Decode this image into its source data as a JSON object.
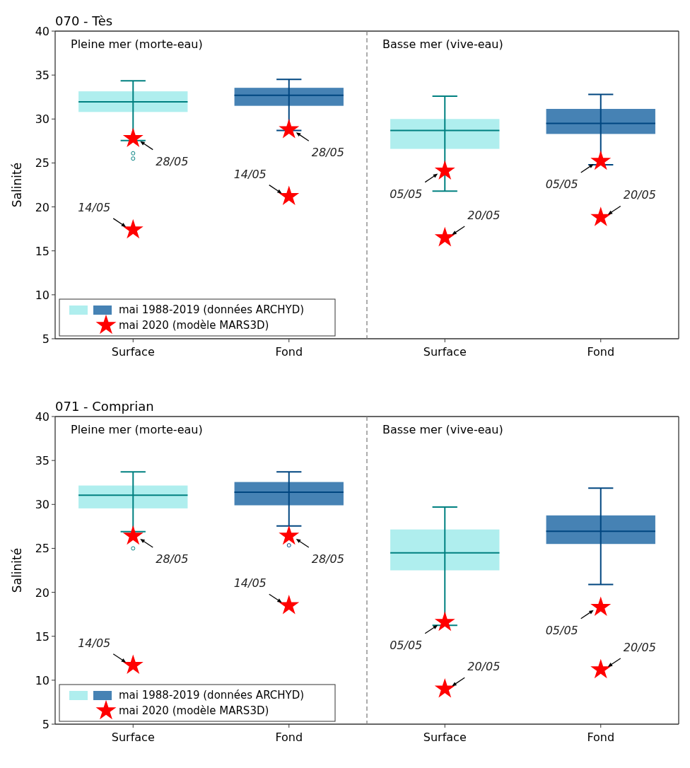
{
  "chart_data": [
    {
      "type": "box",
      "title": "070 - Tès",
      "ylabel": "Salinité",
      "categories": [
        "Surface",
        "Fond"
      ],
      "ylim": [
        5,
        40
      ],
      "yticks": [
        5,
        10,
        15,
        20,
        25,
        30,
        35,
        40
      ],
      "legend": "bottom left",
      "series": [
        {
          "name": "mai 1988-2019 (données ARCHYD)",
          "colors": [
            "#afeeee",
            "#4682b4"
          ],
          "boxes": [
            {
              "low": 27.55,
              "q1": 30.8,
              "median": 31.95,
              "q3": 33.15,
              "high": 34.35,
              "outliers": [
                26.1,
                25.5
              ]
            },
            {
              "low": 28.7,
              "q1": 31.5,
              "median": 32.7,
              "q3": 33.55,
              "high": 34.5
            }
          ]
        },
        {
          "name": "mai 2020 (modèle MARS3D)",
          "type": "scatter",
          "color": "#ff0000",
          "marker": "star",
          "x": [
            "Surface",
            "Fond"
          ],
          "values": [
            27.8,
            28.8
          ]
        },
        {
          "type": "scatter",
          "color": "#ff0000",
          "marker": "star",
          "x": [
            "Surface",
            "Fond"
          ],
          "values": [
            17.4,
            21.2
          ]
        }
      ],
      "annotations": [
        "Pleine mer (morte-eau)",
        {
          "text": "28/05",
          "x": "Surface",
          "y": 27.8
        },
        {
          "text": "28/05",
          "x": "Fond",
          "y": 28.8
        },
        {
          "text": "14/05",
          "x": "Surface",
          "y": 17.4
        },
        {
          "text": "14/05",
          "x": "Fond",
          "y": 21.2
        }
      ]
    },
    {
      "type": "box",
      "categories": [
        "Surface",
        "Fond"
      ],
      "ylim": [
        5,
        40
      ],
      "yticks": [
        5,
        10,
        15,
        20,
        25,
        30,
        35,
        40
      ],
      "tick_labels": "x",
      "series": [
        {
          "colors": [
            "#afeeee",
            "#4682b4"
          ],
          "boxes": [
            {
              "low": 21.8,
              "q1": 26.6,
              "median": 28.7,
              "q3": 30.0,
              "high": 32.6
            },
            {
              "low": 24.8,
              "q1": 28.3,
              "median": 29.5,
              "q3": 31.15,
              "high": 32.8
            }
          ]
        },
        {
          "type": "scatter",
          "color": "#ff0000",
          "marker": "star",
          "x": [
            "Surface",
            "Fond"
          ],
          "values": [
            24.1,
            25.2
          ]
        },
        {
          "type": "scatter",
          "color": "#ff0000",
          "marker": "star",
          "x": [
            "Surface",
            "Fond"
          ],
          "values": [
            16.5,
            18.8
          ]
        }
      ],
      "annotations": [
        "Basse mer (vive-eau)",
        {
          "text": "05/05",
          "x": "Surface",
          "y": 24.1
        },
        {
          "text": "05/05",
          "x": "Fond",
          "y": 25.2
        },
        {
          "text": "20/05",
          "x": "Surface",
          "y": 16.5
        },
        {
          "text": "20/05",
          "x": "Fond",
          "y": 18.8
        }
      ]
    },
    {
      "type": "box",
      "title": "071 - Comprian",
      "ylabel": "Salinité",
      "categories": [
        "Surface",
        "Fond"
      ],
      "ylim": [
        5,
        40
      ],
      "yticks": [
        5,
        10,
        15,
        20,
        25,
        30,
        35,
        40
      ],
      "legend": "bottom left",
      "series": [
        {
          "name": "mai 1988-2019 (données ARCHYD)",
          "colors": [
            "#afeeee",
            "#4682b4"
          ],
          "boxes": [
            {
              "low": 26.9,
              "q1": 29.55,
              "median": 31.05,
              "q3": 32.15,
              "high": 33.7,
              "outliers": [
                25.0
              ]
            },
            {
              "low": 27.55,
              "q1": 29.9,
              "median": 31.4,
              "q3": 32.55,
              "high": 33.7,
              "outliers": [
                25.35
              ]
            }
          ]
        },
        {
          "name": "mai 2020 (modèle MARS3D)",
          "type": "scatter",
          "color": "#ff0000",
          "marker": "star",
          "x": [
            "Surface",
            "Fond"
          ],
          "values": [
            26.4,
            26.4
          ]
        },
        {
          "type": "scatter",
          "color": "#ff0000",
          "marker": "star",
          "x": [
            "Surface",
            "Fond"
          ],
          "values": [
            11.7,
            18.5
          ]
        }
      ],
      "annotations": [
        "Pleine mer (morte-eau)",
        {
          "text": "28/05",
          "x": "Surface",
          "y": 26.4
        },
        {
          "text": "28/05",
          "x": "Fond",
          "y": 26.4
        },
        {
          "text": "14/05",
          "x": "Surface",
          "y": 11.7
        },
        {
          "text": "14/05",
          "x": "Fond",
          "y": 18.5
        }
      ]
    },
    {
      "type": "box",
      "categories": [
        "Surface",
        "Fond"
      ],
      "ylim": [
        5,
        40
      ],
      "yticks": [
        5,
        10,
        15,
        20,
        25,
        30,
        35,
        40
      ],
      "tick_labels": "x",
      "series": [
        {
          "colors": [
            "#afeeee",
            "#4682b4"
          ],
          "boxes": [
            {
              "low": 16.25,
              "q1": 22.5,
              "median": 24.5,
              "q3": 27.15,
              "high": 29.7
            },
            {
              "low": 20.9,
              "q1": 25.5,
              "median": 26.95,
              "q3": 28.75,
              "high": 31.85
            }
          ]
        },
        {
          "type": "scatter",
          "color": "#ff0000",
          "marker": "star",
          "x": [
            "Surface",
            "Fond"
          ],
          "values": [
            16.6,
            18.3
          ]
        },
        {
          "type": "scatter",
          "color": "#ff0000",
          "marker": "star",
          "x": [
            "Surface",
            "Fond"
          ],
          "values": [
            9.0,
            11.2
          ]
        }
      ],
      "annotations": [
        "Basse mer (vive-eau)",
        {
          "text": "05/05",
          "x": "Surface",
          "y": 16.6
        },
        {
          "text": "05/05",
          "x": "Fond",
          "y": 18.3
        },
        {
          "text": "20/05",
          "x": "Surface",
          "y": 9.0
        },
        {
          "text": "20/05",
          "x": "Fond",
          "y": 11.2
        }
      ]
    }
  ]
}
